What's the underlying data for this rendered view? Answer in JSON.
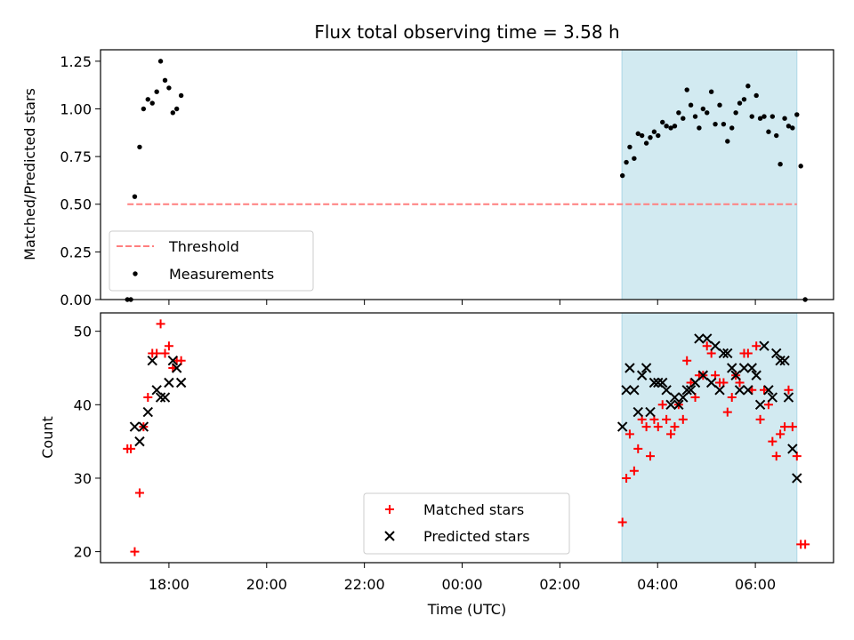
{
  "chart_data": {
    "type": "scatter",
    "title": "Flux total observing time = 3.58 h",
    "xlabel": "Time (UTC)",
    "x_unit": "hours since 00:00 UTC (ticks shown as clock time)",
    "xlim": [
      -7.4,
      7.6
    ],
    "xticks": [
      {
        "value": -6,
        "label": "18:00"
      },
      {
        "value": -4,
        "label": "20:00"
      },
      {
        "value": -2,
        "label": "22:00"
      },
      {
        "value": 0,
        "label": "00:00"
      },
      {
        "value": 2,
        "label": "02:00"
      },
      {
        "value": 4,
        "label": "04:00"
      },
      {
        "value": 6,
        "label": "06:00"
      }
    ],
    "shaded_region": {
      "x": [
        3.27,
        6.85
      ],
      "color": "#add8e6"
    },
    "panels": [
      {
        "ylabel": "Matched/Predicted stars",
        "ylim": [
          0,
          1.31
        ],
        "yticks": [
          "0.00",
          "0.25",
          "0.50",
          "0.75",
          "1.00",
          "1.25"
        ],
        "legend": {
          "position": "lower-left",
          "entries": [
            "Threshold",
            "Measurements"
          ]
        },
        "series": [
          {
            "name": "Threshold",
            "kind": "hline",
            "y": 0.5,
            "xrange": [
              -6.85,
              6.85
            ],
            "color": "#ff7f7f",
            "dashed": true
          },
          {
            "name": "Measurements",
            "kind": "dots",
            "color": "#000000",
            "points": [
              [
                -6.85,
                0.0
              ],
              [
                -6.78,
                0.0
              ],
              [
                -6.7,
                0.54
              ],
              [
                -6.6,
                0.8
              ],
              [
                -6.52,
                1.0
              ],
              [
                -6.43,
                1.05
              ],
              [
                -6.34,
                1.03
              ],
              [
                -6.25,
                1.09
              ],
              [
                -6.17,
                1.25
              ],
              [
                -6.08,
                1.15
              ],
              [
                -6.0,
                1.11
              ],
              [
                -5.92,
                0.98
              ],
              [
                -5.84,
                1.0
              ],
              [
                -5.75,
                1.07
              ],
              [
                3.28,
                0.65
              ],
              [
                3.36,
                0.72
              ],
              [
                3.43,
                0.8
              ],
              [
                3.52,
                0.74
              ],
              [
                3.6,
                0.87
              ],
              [
                3.68,
                0.86
              ],
              [
                3.77,
                0.82
              ],
              [
                3.85,
                0.85
              ],
              [
                3.93,
                0.88
              ],
              [
                4.01,
                0.86
              ],
              [
                4.1,
                0.93
              ],
              [
                4.18,
                0.91
              ],
              [
                4.27,
                0.9
              ],
              [
                4.35,
                0.91
              ],
              [
                4.43,
                0.98
              ],
              [
                4.52,
                0.95
              ],
              [
                4.6,
                1.1
              ],
              [
                4.68,
                1.02
              ],
              [
                4.77,
                0.96
              ],
              [
                4.85,
                0.9
              ],
              [
                4.93,
                1.0
              ],
              [
                5.01,
                0.98
              ],
              [
                5.1,
                1.09
              ],
              [
                5.18,
                0.92
              ],
              [
                5.27,
                1.02
              ],
              [
                5.35,
                0.92
              ],
              [
                5.43,
                0.83
              ],
              [
                5.52,
                0.9
              ],
              [
                5.6,
                0.98
              ],
              [
                5.68,
                1.03
              ],
              [
                5.77,
                1.05
              ],
              [
                5.85,
                1.12
              ],
              [
                5.93,
                0.96
              ],
              [
                6.02,
                1.07
              ],
              [
                6.1,
                0.95
              ],
              [
                6.18,
                0.96
              ],
              [
                6.27,
                0.88
              ],
              [
                6.35,
                0.96
              ],
              [
                6.43,
                0.86
              ],
              [
                6.51,
                0.71
              ],
              [
                6.6,
                0.95
              ],
              [
                6.68,
                0.91
              ],
              [
                6.76,
                0.9
              ],
              [
                6.85,
                0.97
              ],
              [
                6.93,
                0.7
              ],
              [
                7.02,
                0.0
              ]
            ]
          }
        ]
      },
      {
        "ylabel": "Count",
        "ylim": [
          18.5,
          52.5
        ],
        "yticks": [
          "20",
          "30",
          "40",
          "50"
        ],
        "legend": {
          "position": "lower-center",
          "entries": [
            "Matched stars",
            "Predicted stars"
          ]
        },
        "series": [
          {
            "name": "Matched stars",
            "kind": "plus",
            "color": "#ff0000",
            "points": [
              [
                -6.85,
                34
              ],
              [
                -6.78,
                34
              ],
              [
                -6.7,
                20
              ],
              [
                -6.6,
                28
              ],
              [
                -6.52,
                37
              ],
              [
                -6.43,
                41
              ],
              [
                -6.34,
                47
              ],
              [
                -6.25,
                47
              ],
              [
                -6.17,
                51
              ],
              [
                -6.08,
                47
              ],
              [
                -6.0,
                48
              ],
              [
                -5.92,
                45
              ],
              [
                -5.84,
                46
              ],
              [
                -5.75,
                46
              ],
              [
                3.28,
                24
              ],
              [
                3.36,
                30
              ],
              [
                3.43,
                36
              ],
              [
                3.52,
                31
              ],
              [
                3.6,
                34
              ],
              [
                3.68,
                38
              ],
              [
                3.77,
                37
              ],
              [
                3.85,
                33
              ],
              [
                3.93,
                38
              ],
              [
                4.01,
                37
              ],
              [
                4.1,
                40
              ],
              [
                4.18,
                38
              ],
              [
                4.27,
                36
              ],
              [
                4.35,
                37
              ],
              [
                4.43,
                40
              ],
              [
                4.52,
                38
              ],
              [
                4.6,
                46
              ],
              [
                4.68,
                43
              ],
              [
                4.77,
                41
              ],
              [
                4.85,
                44
              ],
              [
                4.93,
                44
              ],
              [
                5.01,
                48
              ],
              [
                5.1,
                47
              ],
              [
                5.18,
                44
              ],
              [
                5.27,
                43
              ],
              [
                5.35,
                43
              ],
              [
                5.43,
                39
              ],
              [
                5.52,
                41
              ],
              [
                5.6,
                44
              ],
              [
                5.68,
                43
              ],
              [
                5.77,
                47
              ],
              [
                5.85,
                47
              ],
              [
                5.93,
                42
              ],
              [
                6.02,
                48
              ],
              [
                6.1,
                38
              ],
              [
                6.18,
                42
              ],
              [
                6.27,
                40
              ],
              [
                6.35,
                35
              ],
              [
                6.43,
                33
              ],
              [
                6.51,
                36
              ],
              [
                6.6,
                37
              ],
              [
                6.68,
                42
              ],
              [
                6.76,
                37
              ],
              [
                6.85,
                33
              ],
              [
                6.93,
                21
              ],
              [
                7.02,
                21
              ]
            ]
          },
          {
            "name": "Predicted stars",
            "kind": "cross",
            "color": "#000000",
            "points": [
              [
                -6.7,
                37
              ],
              [
                -6.6,
                35
              ],
              [
                -6.52,
                37
              ],
              [
                -6.43,
                39
              ],
              [
                -6.34,
                46
              ],
              [
                -6.25,
                42
              ],
              [
                -6.17,
                41
              ],
              [
                -6.08,
                41
              ],
              [
                -6.0,
                43
              ],
              [
                -5.92,
                46
              ],
              [
                -5.84,
                45
              ],
              [
                -5.75,
                43
              ],
              [
                3.28,
                37
              ],
              [
                3.36,
                42
              ],
              [
                3.43,
                45
              ],
              [
                3.52,
                42
              ],
              [
                3.6,
                39
              ],
              [
                3.68,
                44
              ],
              [
                3.77,
                45
              ],
              [
                3.85,
                39
              ],
              [
                3.93,
                43
              ],
              [
                4.01,
                43
              ],
              [
                4.1,
                43
              ],
              [
                4.18,
                42
              ],
              [
                4.27,
                40
              ],
              [
                4.35,
                41
              ],
              [
                4.43,
                40
              ],
              [
                4.52,
                41
              ],
              [
                4.6,
                42
              ],
              [
                4.68,
                42
              ],
              [
                4.77,
                43
              ],
              [
                4.85,
                49
              ],
              [
                4.93,
                44
              ],
              [
                5.01,
                49
              ],
              [
                5.1,
                43
              ],
              [
                5.18,
                48
              ],
              [
                5.27,
                42
              ],
              [
                5.35,
                47
              ],
              [
                5.43,
                47
              ],
              [
                5.52,
                45
              ],
              [
                5.6,
                44
              ],
              [
                5.68,
                42
              ],
              [
                5.77,
                45
              ],
              [
                5.85,
                42
              ],
              [
                5.93,
                45
              ],
              [
                6.02,
                44
              ],
              [
                6.1,
                40
              ],
              [
                6.18,
                48
              ],
              [
                6.27,
                42
              ],
              [
                6.35,
                41
              ],
              [
                6.43,
                47
              ],
              [
                6.51,
                46
              ],
              [
                6.6,
                46
              ],
              [
                6.68,
                41
              ],
              [
                6.76,
                34
              ],
              [
                6.85,
                30
              ]
            ]
          }
        ]
      }
    ]
  }
}
